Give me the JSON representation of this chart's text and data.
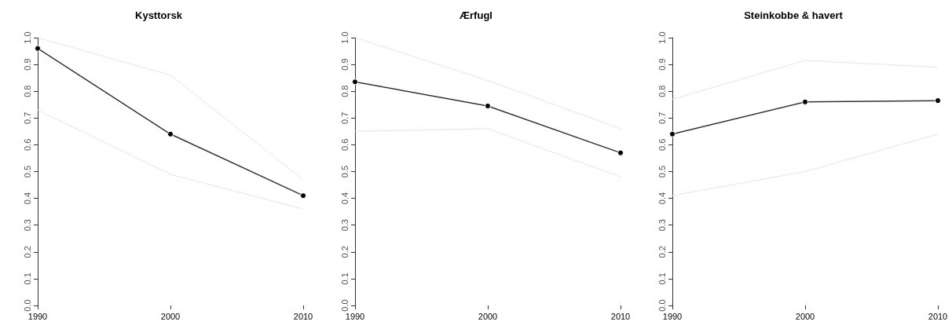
{
  "chart_data": [
    {
      "type": "line",
      "title": "Kysttorsk",
      "x": [
        1990,
        2000,
        2010
      ],
      "xlim": [
        1990,
        2010
      ],
      "xticks": [
        1990,
        2000,
        2010
      ],
      "ylim": [
        0,
        1
      ],
      "yticks": [
        {
          "value": 0,
          "label": "0.0"
        },
        {
          "value": 0.1,
          "label": "0.1"
        },
        {
          "value": 0.2,
          "label": "0.2"
        },
        {
          "value": 0.3,
          "label": "0.3"
        },
        {
          "value": 0.4,
          "label": "0.4"
        },
        {
          "value": 0.5,
          "label": "0.5"
        },
        {
          "value": 0.6,
          "label": "0.6"
        },
        {
          "value": 0.7,
          "label": "0.7"
        },
        {
          "value": 0.8,
          "label": "0.8"
        },
        {
          "value": 0.9,
          "label": "0.9"
        },
        {
          "value": 1,
          "label": "1.0"
        }
      ],
      "grid": false,
      "marker": "circle",
      "line_style": "solid",
      "series": [
        {
          "color": "#333333",
          "values": [
            0.96,
            0.64,
            0.41
          ]
        },
        {
          "color": "#cccccc",
          "values": [
            0.73,
            0.49,
            0.36
          ],
          "line_style": "dotted",
          "marker": "none"
        },
        {
          "color": "#cccccc",
          "values": [
            1.0,
            0.86,
            0.47
          ],
          "line_style": "dotted",
          "marker": "none"
        }
      ]
    },
    {
      "type": "line",
      "title": "Ærfugl",
      "x": [
        1990,
        2000,
        2010
      ],
      "xlim": [
        1990,
        2010
      ],
      "xticks": [
        1990,
        2000,
        2010
      ],
      "ylim": [
        0,
        1
      ],
      "yticks": [
        {
          "value": 0,
          "label": "0.0"
        },
        {
          "value": 0.1,
          "label": "0.1"
        },
        {
          "value": 0.2,
          "label": "0.2"
        },
        {
          "value": 0.3,
          "label": "0.3"
        },
        {
          "value": 0.4,
          "label": "0.4"
        },
        {
          "value": 0.5,
          "label": "0.5"
        },
        {
          "value": 0.6,
          "label": "0.6"
        },
        {
          "value": 0.7,
          "label": "0.7"
        },
        {
          "value": 0.8,
          "label": "0.8"
        },
        {
          "value": 0.9,
          "label": "0.9"
        },
        {
          "value": 1,
          "label": "1.0"
        }
      ],
      "grid": false,
      "marker": "circle",
      "line_style": "solid",
      "series": [
        {
          "color": "#333333",
          "values": [
            0.835,
            0.745,
            0.57
          ]
        },
        {
          "color": "#cccccc",
          "values": [
            0.65,
            0.66,
            0.48
          ],
          "line_style": "dotted",
          "marker": "none"
        },
        {
          "color": "#cccccc",
          "values": [
            1.0,
            0.84,
            0.66
          ],
          "line_style": "dotted",
          "marker": "none"
        }
      ]
    },
    {
      "type": "line",
      "title": "Steinkobbe & havert",
      "x": [
        1990,
        2000,
        2010
      ],
      "xlim": [
        1990,
        2010
      ],
      "xticks": [
        1990,
        2000,
        2010
      ],
      "ylim": [
        0,
        1
      ],
      "yticks": [
        {
          "value": 0,
          "label": "0.0"
        },
        {
          "value": 0.1,
          "label": "0.1"
        },
        {
          "value": 0.2,
          "label": "0.2"
        },
        {
          "value": 0.3,
          "label": "0.3"
        },
        {
          "value": 0.4,
          "label": "0.4"
        },
        {
          "value": 0.5,
          "label": "0.5"
        },
        {
          "value": 0.6,
          "label": "0.6"
        },
        {
          "value": 0.7,
          "label": "0.7"
        },
        {
          "value": 0.8,
          "label": "0.8"
        },
        {
          "value": 0.9,
          "label": "0.9"
        },
        {
          "value": 1,
          "label": "1.0"
        }
      ],
      "grid": false,
      "marker": "circle",
      "line_style": "solid",
      "series": [
        {
          "color": "#333333",
          "values": [
            0.64,
            0.76,
            0.765
          ]
        },
        {
          "color": "#cccccc",
          "values": [
            0.41,
            0.5,
            0.64
          ],
          "line_style": "dotted",
          "marker": "none"
        },
        {
          "color": "#cccccc",
          "values": [
            0.77,
            0.915,
            0.89
          ],
          "line_style": "dotted",
          "marker": "none"
        }
      ]
    }
  ]
}
